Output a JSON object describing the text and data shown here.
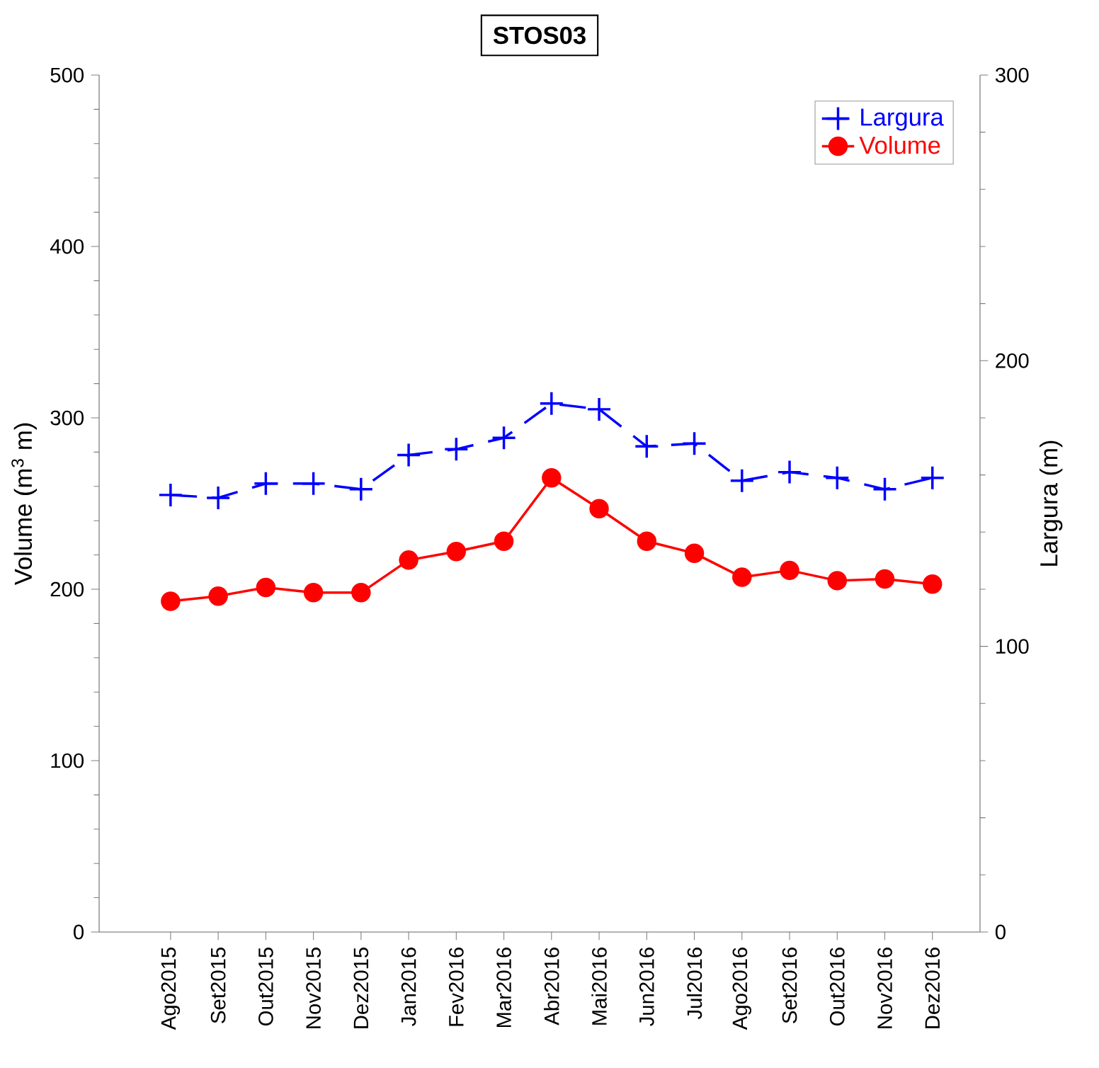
{
  "chart_data": {
    "type": "line",
    "title": "STOS03",
    "ylabel": "Volume (m$^{3}$ m)",
    "y2label": "Largura (m)",
    "categories": [
      "Ago2015",
      "Set2015",
      "Out2015",
      "Nov2015",
      "Dez2015",
      "Jan2016",
      "Fev2016",
      "Mar2016",
      "Abr2016",
      "Mai2016",
      "Jun2016",
      "Jul2016",
      "Ago2016",
      "Set2016",
      "Out2016",
      "Nov2016",
      "Dez2016"
    ],
    "series": [
      {
        "name": "Largura",
        "color": "#0000ff",
        "axis": "y2",
        "marker": "cross",
        "line_style": "dashed",
        "values": [
          153,
          152,
          157,
          157,
          155,
          167,
          169,
          173,
          185,
          183,
          170,
          171,
          158,
          161,
          159,
          155,
          159
        ]
      },
      {
        "name": "Volume",
        "color": "#ff0000",
        "marker": "circle",
        "line_style": "solid",
        "values": [
          193,
          196,
          201,
          198,
          198,
          217,
          222,
          228,
          265,
          247,
          228,
          221,
          207,
          211,
          205,
          206,
          203
        ]
      }
    ],
    "ylim": [
      0,
      500
    ],
    "yticks": [
      0,
      100,
      200,
      300,
      400,
      500
    ],
    "y2lim": [
      0,
      300
    ],
    "y2ticks": [
      0,
      100,
      200,
      300
    ],
    "grid": false,
    "legend": "top right"
  }
}
